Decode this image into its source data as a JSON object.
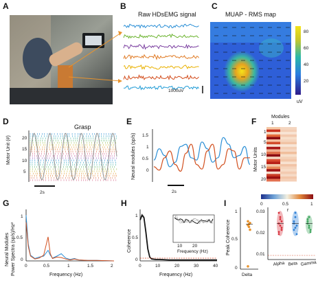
{
  "panels": {
    "A": "A",
    "B": "B",
    "C": "C",
    "D": "D",
    "E": "E",
    "F": "F",
    "G": "G",
    "H": "H",
    "I": "I"
  },
  "B": {
    "title": "Raw HDsEMG signal",
    "scale_label": "1000uV",
    "colors": [
      "#2b8fd6",
      "#6bb32e",
      "#7b3fa0",
      "#e07b25",
      "#e9b100",
      "#d24b1a",
      "#1f9bd6"
    ]
  },
  "C": {
    "title": "MUAP - RMS map",
    "colorbar_ticks": [
      "80",
      "60",
      "40",
      "20"
    ],
    "unit": "uV"
  },
  "D": {
    "title": "Grasp",
    "ylabel": "Motor Unit (#)",
    "yticks": [
      "20",
      "15",
      "10",
      "5"
    ],
    "scalebar": "2s"
  },
  "E": {
    "ylabel": "Neural modules (sp/s)",
    "yticks": [
      "1.5",
      "1",
      "0.5",
      "0"
    ],
    "scalebar": "2s",
    "colors": [
      "#2b8fd6",
      "#d2501f"
    ]
  },
  "F": {
    "title": "Modules",
    "col_labels": [
      "1",
      "2"
    ],
    "ylabel": "Motor Units",
    "yticks": [
      "1",
      "5",
      "10",
      "15",
      "20"
    ],
    "cbar_ticks": [
      "0",
      "0.5",
      "1"
    ],
    "cbar_label": "r"
  },
  "G": {
    "ylabel_1": "Neural Modules",
    "ylabel_2": "Power Spectra (sp/s)/Hz²",
    "xlabel": "Frequency (Hz)",
    "xticks": [
      "0",
      "0.5",
      "1",
      "1.5",
      "2"
    ],
    "yticks": [
      "1",
      "0.5",
      "0"
    ]
  },
  "H": {
    "ylabel": "Coherence",
    "xlabel": "Frequency (Hz)",
    "xticks": [
      "0",
      "10",
      "20",
      "30",
      "40"
    ],
    "yticks": [
      "1",
      "0.5",
      "0"
    ],
    "inset_xlabel": "Frequency (Hz)",
    "inset_xticks": [
      "10",
      "20"
    ]
  },
  "I": {
    "ylabel": "Peak Coherence",
    "left_yticks": [
      "1",
      "0.5",
      "0"
    ],
    "left_xtick": "Delta",
    "right_yticks": [
      "0.03",
      "0.02",
      "0.01"
    ],
    "right_xticks": [
      "Alpha",
      "Beta",
      "Gamma"
    ]
  },
  "chart_data": [
    {
      "panel": "E",
      "type": "line",
      "ylabel": "Neural modules (sp/s)",
      "ylim": [
        -0.2,
        1.6
      ],
      "series": [
        {
          "values": [
            0.5,
            1.0,
            0.7,
            0.2,
            0.4,
            1.1,
            1.2,
            0.6,
            0.5,
            1.3,
            1.0,
            0.4,
            0.6,
            1.5,
            1.2,
            0.6,
            0.7,
            1.1,
            0.3
          ]
        },
        {
          "values": [
            0.2,
            0.05,
            0.6,
            0.9,
            0.3,
            0.0,
            0.8,
            1.2,
            0.3,
            0.1,
            0.9,
            1.2,
            0.1,
            0.3,
            1.0,
            0.9,
            0.1,
            0.6,
            0.6
          ]
        }
      ]
    },
    {
      "panel": "G",
      "type": "line",
      "xlabel": "Frequency (Hz)",
      "xlim": [
        0,
        2
      ],
      "ylim": [
        0,
        1
      ],
      "series": [
        {
          "x": [
            0,
            0.05,
            0.1,
            0.2,
            0.3,
            0.4,
            0.5,
            0.55,
            0.6,
            0.7,
            0.8,
            0.9,
            1.0,
            1.1,
            1.2,
            1.4,
            1.6,
            2.0
          ],
          "values": [
            0.95,
            0.35,
            0.12,
            0.05,
            0.08,
            0.1,
            0.22,
            0.12,
            0.06,
            0.1,
            0.15,
            0.06,
            0.03,
            0.05,
            0.02,
            0.01,
            0.01,
            0.0
          ]
        },
        {
          "x": [
            0,
            0.05,
            0.1,
            0.2,
            0.3,
            0.4,
            0.5,
            0.55,
            0.6,
            0.7,
            0.8,
            0.9,
            1.0,
            1.1,
            1.2,
            1.4,
            1.6,
            2.0
          ],
          "values": [
            0.8,
            0.3,
            0.1,
            0.04,
            0.06,
            0.12,
            0.5,
            0.15,
            0.05,
            0.08,
            0.07,
            0.04,
            0.02,
            0.04,
            0.02,
            0.01,
            0.01,
            0.0
          ]
        }
      ]
    },
    {
      "panel": "H",
      "type": "line",
      "xlabel": "Frequency (Hz)",
      "ylabel": "Coherence",
      "xlim": [
        0,
        40
      ],
      "ylim": [
        0,
        1
      ],
      "series": [
        {
          "x": [
            0,
            1,
            2,
            3,
            4,
            5,
            6,
            8,
            10,
            15,
            20,
            25,
            30,
            35,
            40
          ],
          "values": [
            0.85,
            0.95,
            0.9,
            0.6,
            0.25,
            0.08,
            0.04,
            0.03,
            0.03,
            0.02,
            0.02,
            0.02,
            0.02,
            0.02,
            0.02
          ]
        }
      ]
    },
    {
      "panel": "I",
      "type": "scatter",
      "ylabel": "Peak Coherence",
      "categories": [
        "Delta"
      ],
      "ylim": [
        0,
        1
      ],
      "values": [
        [
          0.85,
          0.8,
          0.82,
          0.78,
          0.75,
          0.7,
          0.05
        ]
      ]
    },
    {
      "panel": "I",
      "type": "scatter",
      "categories": [
        "Alpha",
        "Beta",
        "Gamma"
      ],
      "ylim": [
        0.01,
        0.035
      ],
      "values": [
        [
          0.025,
          0.028,
          0.022,
          0.03,
          0.024,
          0.026,
          0.02,
          0.027,
          0.023,
          0.021
        ],
        [
          0.026,
          0.03,
          0.024,
          0.022,
          0.028,
          0.02,
          0.025,
          0.023
        ],
        [
          0.027,
          0.024,
          0.022,
          0.025,
          0.028,
          0.021,
          0.026,
          0.023
        ]
      ]
    }
  ]
}
